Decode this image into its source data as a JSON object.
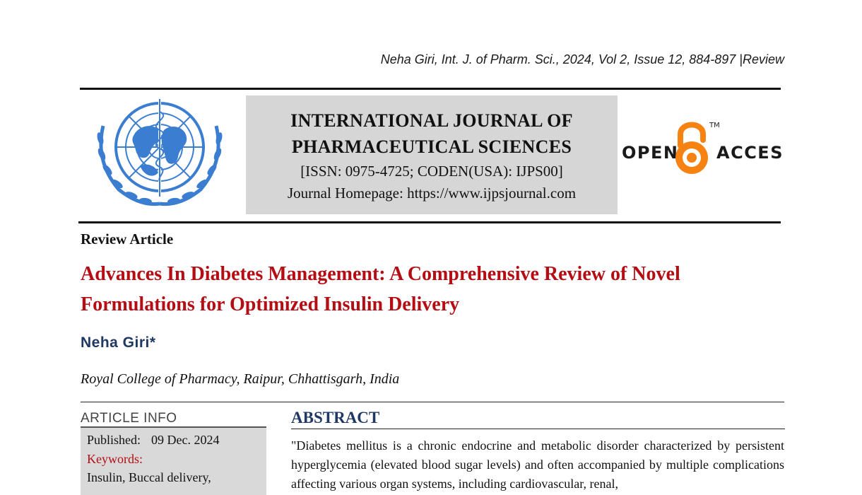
{
  "header": {
    "citation": "Neha Giri, Int. J. of Pharm. Sci., 2024, Vol 2, Issue 12, 884-897 |Review"
  },
  "journal": {
    "title_line1": "INTERNATIONAL JOURNAL OF",
    "title_line2": "PHARMACEUTICAL SCIENCES",
    "issn": "[ISSN: 0975-4725; CODEN(USA): IJPS00]",
    "homepage": "Journal Homepage: https://www.ijpsjournal.com"
  },
  "open_access_logo": {
    "word_left": "OPEN",
    "word_right": "ACCESS",
    "trademark": "TM",
    "color": "#f68212"
  },
  "article": {
    "type": "Review Article",
    "title": "Advances In Diabetes Management: A Comprehensive Review of Novel Formulations for Optimized Insulin Delivery",
    "author": "Neha Giri*",
    "affiliation": "Royal College of Pharmacy, Raipur, Chhattisgarh, India"
  },
  "article_info": {
    "heading": "ARTICLE INFO",
    "published_label": "Published:",
    "published_date": "09 Dec. 2024",
    "keywords_label": "Keywords:",
    "keywords": "Insulin, Buccal delivery,"
  },
  "abstract": {
    "heading": "ABSTRACT",
    "text": "\"Diabetes mellitus is a chronic endocrine and metabolic disorder characterized by persistent hyperglycemia (elevated blood sugar levels) and often accompanied by multiple complications affecting various organ systems, including cardiovascular, renal,"
  },
  "colors": {
    "title_red": "#b50d14",
    "navy": "#1f3864",
    "emblem_blue": "#3b7ed1",
    "box_gray": "#d6d6d6"
  }
}
